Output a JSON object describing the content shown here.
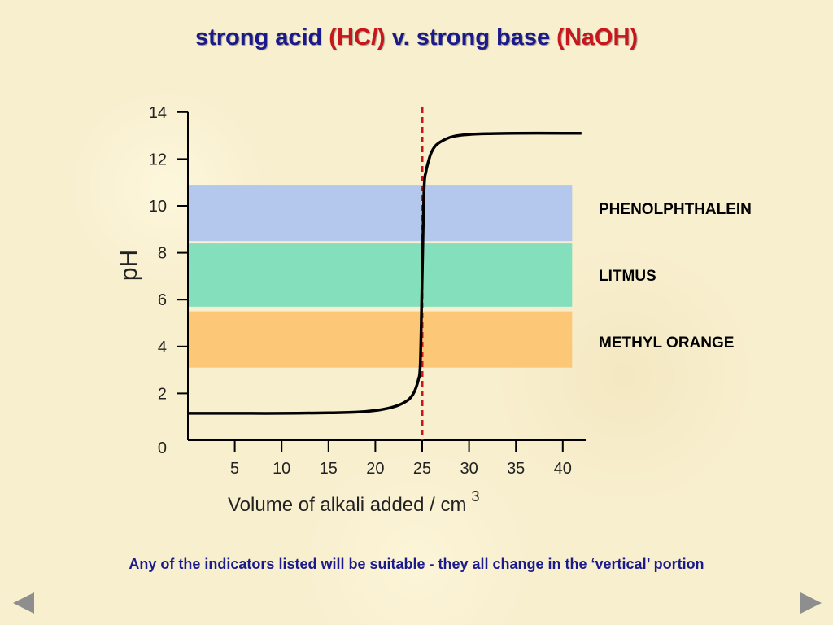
{
  "title": {
    "part1": "strong acid ",
    "part2": "(HC",
    "part3": "l",
    "part4": ")",
    "part5": " v. strong base ",
    "part6": "(NaOH)"
  },
  "chart_data": {
    "type": "line",
    "xlabel": "Volume of alkali added / cm",
    "xlabel_superscript": "3",
    "ylabel": "pH",
    "xlim": [
      0,
      42
    ],
    "ylim": [
      0,
      14
    ],
    "x_ticks": [
      5,
      10,
      15,
      20,
      25,
      30,
      35,
      40
    ],
    "y_ticks": [
      0,
      2,
      4,
      6,
      8,
      10,
      12,
      14
    ],
    "equivalence_point": 25,
    "series": [
      {
        "x": [
          0,
          5,
          10,
          15,
          18,
          20,
          21.5,
          22.5,
          23.5,
          24,
          24.3,
          24.6,
          24.8,
          25,
          25.2,
          25.4,
          25.7,
          26,
          26.5,
          27.5,
          28.5,
          30,
          32,
          35,
          40,
          42
        ],
        "y": [
          1.15,
          1.15,
          1.15,
          1.17,
          1.2,
          1.27,
          1.38,
          1.5,
          1.72,
          1.95,
          2.2,
          2.6,
          3.3,
          7,
          10.7,
          11.45,
          11.95,
          12.3,
          12.6,
          12.85,
          12.98,
          13.05,
          13.08,
          13.1,
          13.1,
          13.1
        ]
      }
    ],
    "bands": [
      {
        "name": "PHENOLPHTHALEIN",
        "y_low": 8.5,
        "y_high": 10.9,
        "color": "#b4c8ee"
      },
      {
        "name": "LITMUS",
        "y_low": 5.7,
        "y_high": 8.4,
        "color": "#84e0bc"
      },
      {
        "name": "METHYL ORANGE",
        "y_low": 3.1,
        "y_high": 5.5,
        "color": "#fcc878"
      }
    ],
    "colors": {
      "curve": "#000000",
      "equivalence_line": "#c8161d",
      "axis": "#000000"
    }
  },
  "caption": "Any of the indicators listed will be suitable - they all change in the ‘vertical’ portion"
}
